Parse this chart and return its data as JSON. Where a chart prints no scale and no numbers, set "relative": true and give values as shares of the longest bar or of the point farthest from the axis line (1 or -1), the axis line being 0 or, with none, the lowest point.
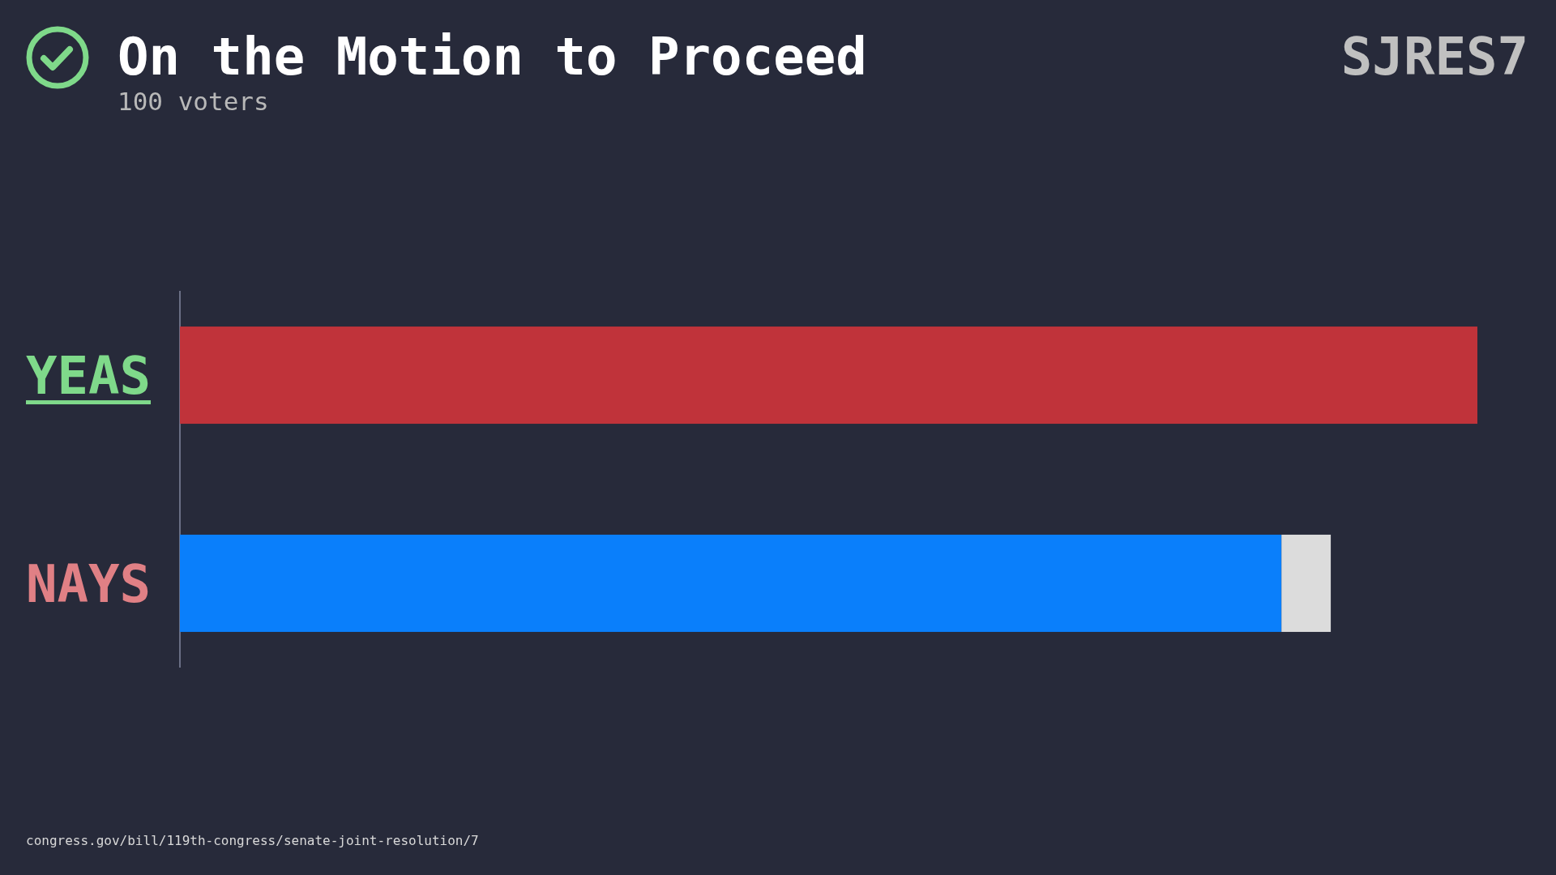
{
  "chart_data": {
    "type": "bar",
    "title": "On the Motion to Proceed",
    "subtitle": "100 voters",
    "annotations": [
      "SJRES7",
      "congress.gov/bill/119th-congress/senate-joint-resolution/7"
    ],
    "orientation": "horizontal",
    "stacked": true,
    "relative": true,
    "categories": [
      "YEAS",
      "NAYS"
    ],
    "series": [
      {
        "color": "#c0333a",
        "values": [
          1,
          null
        ]
      },
      {
        "color": "#0a7ffb",
        "values": [
          null,
          0.849
        ]
      },
      {
        "color": "#dcdcdc",
        "values": [
          null,
          0.038
        ]
      }
    ]
  }
}
